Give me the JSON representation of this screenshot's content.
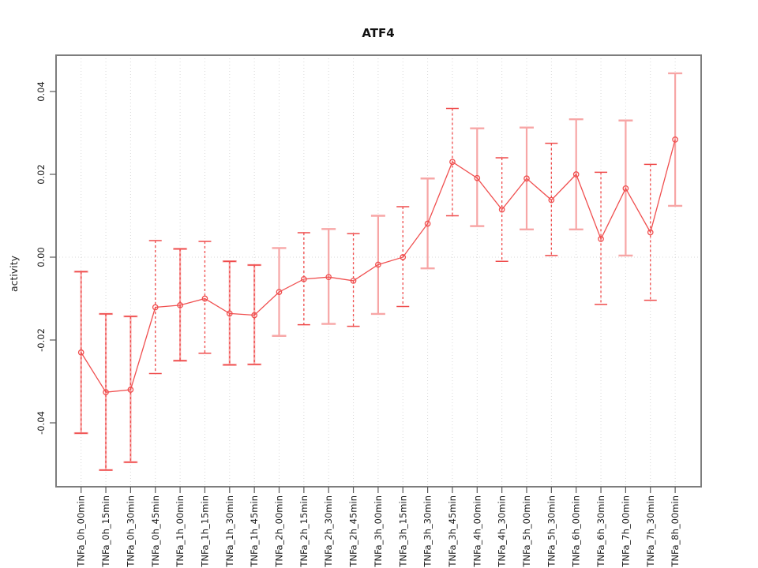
{
  "figure": {
    "background": "#ffffff"
  },
  "chart_data": {
    "type": "line",
    "title": "ATF4",
    "xlabel": "",
    "ylabel": "activity",
    "legend": "none",
    "categories": [
      "TNFa_0h_00min",
      "TNFa_0h_15min",
      "TNFa_0h_30min",
      "TNFa_0h_45min",
      "TNFa_1h_00min",
      "TNFa_1h_15min",
      "TNFa_1h_30min",
      "TNFa_1h_45min",
      "TNFa_2h_00min",
      "TNFa_2h_15min",
      "TNFa_2h_30min",
      "TNFa_2h_45min",
      "TNFa_3h_00min",
      "TNFa_3h_15min",
      "TNFa_3h_30min",
      "TNFa_3h_45min",
      "TNFa_4h_00min",
      "TNFa_4h_30min",
      "TNFa_5h_00min",
      "TNFa_5h_30min",
      "TNFa_6h_00min",
      "TNFa_6h_30min",
      "TNFa_7h_00min",
      "TNFa_7h_30min",
      "TNFa_8h_00min"
    ],
    "series": [
      {
        "name": "ATF4",
        "values": [
          -0.023,
          -0.0326,
          -0.032,
          -0.0121,
          -0.0116,
          -0.01,
          -0.0136,
          -0.014,
          -0.0084,
          -0.0053,
          -0.0048,
          -0.0057,
          -0.0018,
          0.0,
          0.0081,
          0.023,
          0.0191,
          0.0115,
          0.019,
          0.0138,
          0.02,
          0.0044,
          0.0166,
          0.006,
          0.0284
        ],
        "error_low": [
          -0.0425,
          -0.0514,
          -0.0495,
          -0.0281,
          -0.025,
          -0.0232,
          -0.026,
          -0.0259,
          -0.019,
          -0.0163,
          -0.0161,
          -0.0167,
          -0.0137,
          -0.0119,
          -0.0027,
          0.01,
          0.0075,
          -0.001,
          0.0067,
          0.0004,
          0.0067,
          -0.0114,
          0.0004,
          -0.0104,
          0.0124
        ],
        "error_high": [
          -0.0035,
          -0.0137,
          -0.0143,
          0.004,
          0.002,
          0.0038,
          -0.001,
          -0.0019,
          0.0022,
          0.0059,
          0.0068,
          0.0057,
          0.01,
          0.0122,
          0.019,
          0.0359,
          0.0311,
          0.024,
          0.0313,
          0.0275,
          0.0333,
          0.0205,
          0.033,
          0.0224,
          0.0444
        ],
        "error_bar_styles": [
          "both",
          "both",
          "both",
          "dashed",
          "both",
          "dashed",
          "both",
          "both",
          "solid",
          "dashed",
          "solid",
          "dashed",
          "solid",
          "dashed",
          "solid",
          "dashed",
          "solid",
          "dashed",
          "solid",
          "dashed",
          "solid",
          "dashed",
          "solid",
          "dashed",
          "solid"
        ]
      }
    ],
    "yticks": [
      -0.04,
      -0.02,
      0,
      0.02,
      0.04
    ],
    "ytick_labels": [
      "-0.04",
      "-0.02",
      "0.00",
      "0.02",
      "0.04"
    ],
    "ylim": [
      -0.0554,
      0.0488
    ],
    "grid": {
      "vertical_dotted_per_category": true,
      "horizontal_dotted_at_zero": true
    },
    "marker": "open-circle",
    "colors": {
      "series": "#f04f4f",
      "solid_bar": "#f7a6a6",
      "dashed_bar": "#ef4b4b",
      "frame": "#7d7d7d",
      "tick": "#5a5a5a",
      "grid": "#d9d9d9",
      "text": "#1a1a1a"
    }
  }
}
